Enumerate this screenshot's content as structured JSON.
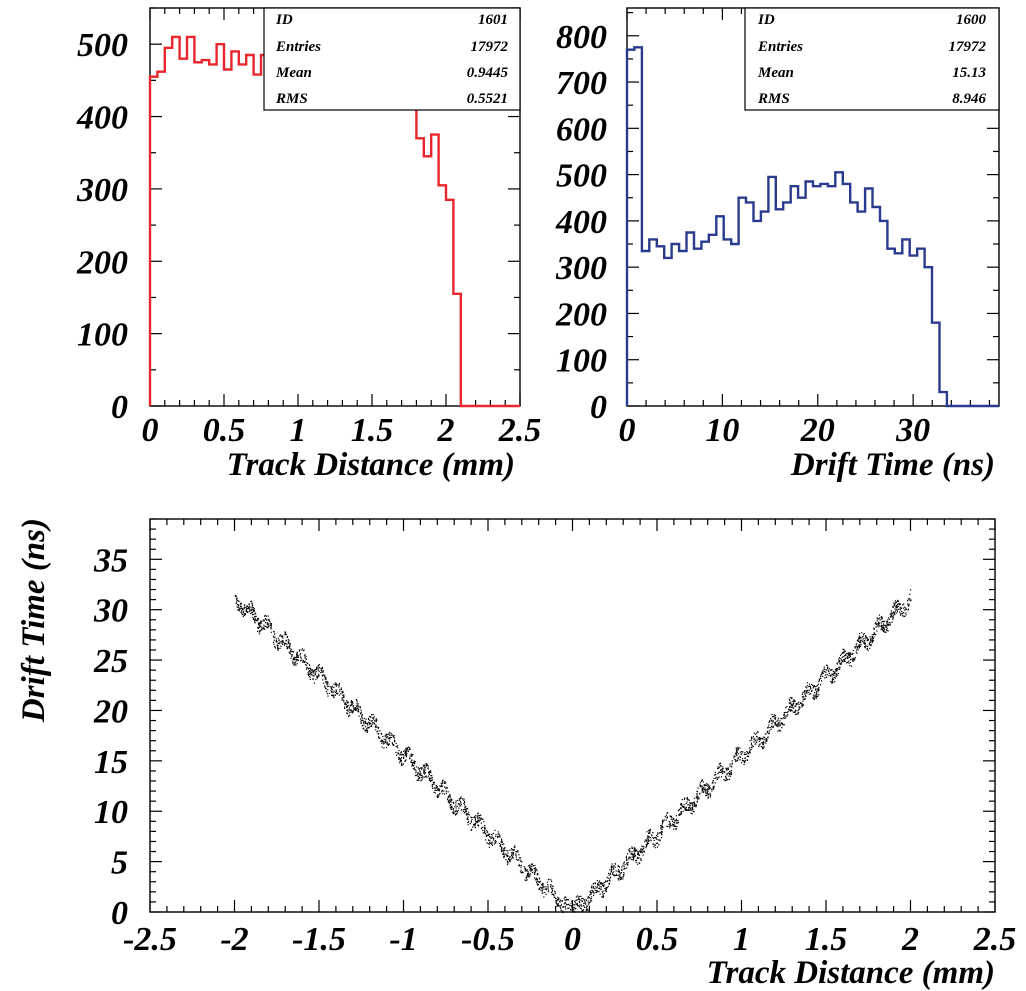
{
  "chart_data": [
    {
      "type": "histogram",
      "color": "#e8262b",
      "xlabel": "Track Distance (mm)",
      "ylabel": "",
      "xlim": [
        0,
        2.5
      ],
      "ylim": [
        0,
        550
      ],
      "x_ticks": [
        "0",
        "0.5",
        "1",
        "1.5",
        "2",
        "2.5"
      ],
      "y_ticks": [
        "0",
        "100",
        "200",
        "300",
        "400",
        "500"
      ],
      "bin_width": 0.05,
      "values": [
        455,
        462,
        495,
        510,
        480,
        510,
        475,
        478,
        472,
        500,
        465,
        490,
        472,
        485,
        458,
        485,
        468,
        505,
        458,
        505,
        470,
        478,
        465,
        510,
        478,
        462,
        490,
        478,
        498,
        455,
        472,
        495,
        455,
        468,
        450,
        445,
        370,
        345,
        375,
        305,
        285,
        155,
        0,
        0,
        0,
        0,
        0,
        0,
        0,
        0
      ],
      "stats": {
        "ID": "1601",
        "Entries": "17972",
        "Mean": "0.9445",
        "RMS": "0.5521"
      },
      "stat_labels": [
        "ID",
        "Entries",
        "Mean",
        "RMS"
      ]
    },
    {
      "type": "histogram",
      "color": "#2a3a8e",
      "xlabel": "Drift Time (ns)",
      "ylabel": "",
      "xlim": [
        0,
        39
      ],
      "ylim": [
        0,
        860
      ],
      "x_ticks": [
        "0",
        "10",
        "20",
        "30"
      ],
      "y_ticks": [
        "0",
        "100",
        "200",
        "300",
        "400",
        "500",
        "600",
        "700",
        "800"
      ],
      "bin_width": 0.78,
      "values": [
        770,
        775,
        335,
        360,
        345,
        320,
        350,
        335,
        375,
        340,
        355,
        370,
        410,
        360,
        350,
        450,
        440,
        400,
        420,
        495,
        425,
        440,
        475,
        450,
        485,
        475,
        480,
        475,
        505,
        480,
        440,
        420,
        470,
        430,
        400,
        340,
        330,
        360,
        325,
        340,
        300,
        180,
        30,
        0,
        0,
        0,
        0,
        0,
        0,
        0
      ],
      "stats": {
        "ID": "1600",
        "Entries": "17972",
        "Mean": "15.13",
        "RMS": "8.946"
      },
      "stat_labels": [
        "ID",
        "Entries",
        "Mean",
        "RMS"
      ]
    },
    {
      "type": "scatter",
      "color": "#000000",
      "xlabel": "Track Distance (mm)",
      "ylabel": "Drift Time (ns)",
      "xlim": [
        -2.5,
        2.5
      ],
      "ylim": [
        0,
        39
      ],
      "x_ticks": [
        "-2.5",
        "-2",
        "-1.5",
        "-1",
        "-0.5",
        "0",
        "0.5",
        "1",
        "1.5",
        "2",
        "2.5"
      ],
      "y_ticks": [
        "0",
        "5",
        "10",
        "15",
        "20",
        "25",
        "30",
        "35"
      ],
      "relation": "drift_time ≈ 15.6 × |track_distance|",
      "x_range_of_points": [
        -2.0,
        2.0
      ]
    }
  ]
}
